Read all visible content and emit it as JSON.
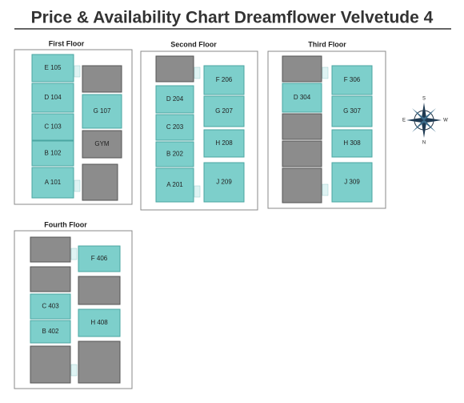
{
  "header": {
    "title": "Price & Availability Chart Dreamflower Velvetude 4"
  },
  "floors": [
    {
      "label": "First Floor",
      "units": [
        "E 105",
        "D 104",
        "C 103",
        "B 102",
        "A 101",
        "G 107",
        "GYM"
      ]
    },
    {
      "label": "Second Floor",
      "units": [
        "D 204",
        "C 203",
        "B 202",
        "A 201",
        "F 206",
        "G 207",
        "H 208",
        "J 209"
      ]
    },
    {
      "label": "Third Floor",
      "units": [
        "D 304",
        "F 306",
        "G 307",
        "H 308",
        "J 309"
      ]
    },
    {
      "label": "Fourth Floor",
      "units": [
        "C 403",
        "B 402",
        "F 406",
        "H 408"
      ]
    }
  ],
  "compass": {
    "top": "S",
    "left": "E",
    "right": "W",
    "bottom": "N"
  }
}
